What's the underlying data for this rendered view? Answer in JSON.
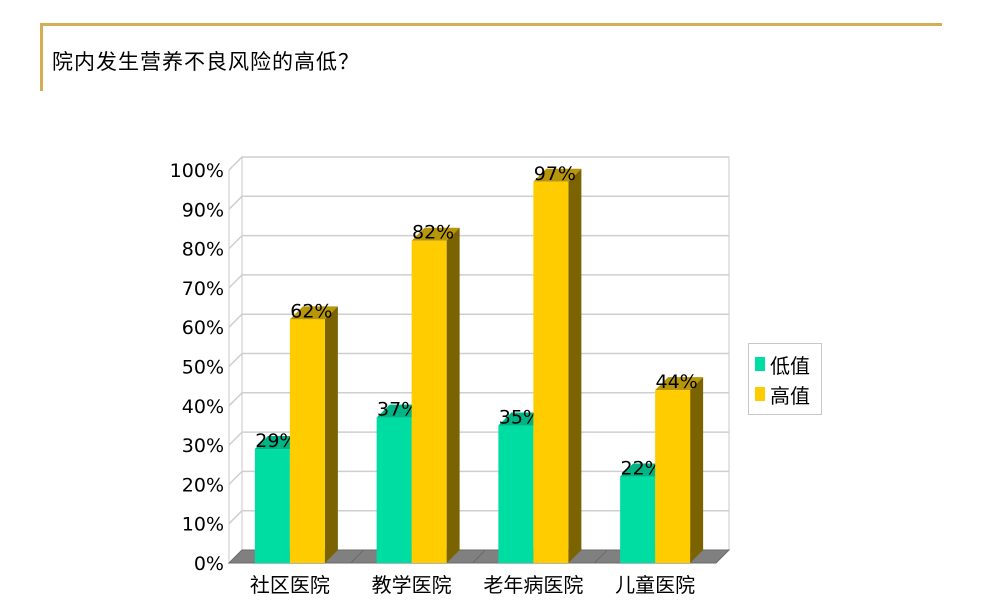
{
  "slide": {
    "title": "院内发生营养不良风险的高低？"
  },
  "chart_data": {
    "type": "bar",
    "style": "3d-clustered-column",
    "title": "",
    "xlabel": "",
    "ylabel": "",
    "categories": [
      "社区医院",
      "教学医院",
      "老年病医院",
      "儿童医院"
    ],
    "series": [
      {
        "name": "低值",
        "color": "#00dda2",
        "values": [
          29,
          37,
          35,
          22
        ],
        "labels": [
          "29%",
          "37%",
          "35%",
          "22%"
        ]
      },
      {
        "name": "高值",
        "color": "#ffcc00",
        "values": [
          62,
          82,
          97,
          44
        ],
        "labels": [
          "62%",
          "82%",
          "97%",
          "44%"
        ]
      }
    ],
    "ylim": [
      0,
      100
    ],
    "yticks": [
      "0%",
      "10%",
      "20%",
      "30%",
      "40%",
      "50%",
      "60%",
      "70%",
      "80%",
      "90%",
      "100%"
    ],
    "grid": true,
    "legend_position": "right"
  },
  "legend": {
    "items": [
      {
        "label": "低值",
        "color": "#00dda2"
      },
      {
        "label": "高值",
        "color": "#ffcc00"
      }
    ]
  }
}
